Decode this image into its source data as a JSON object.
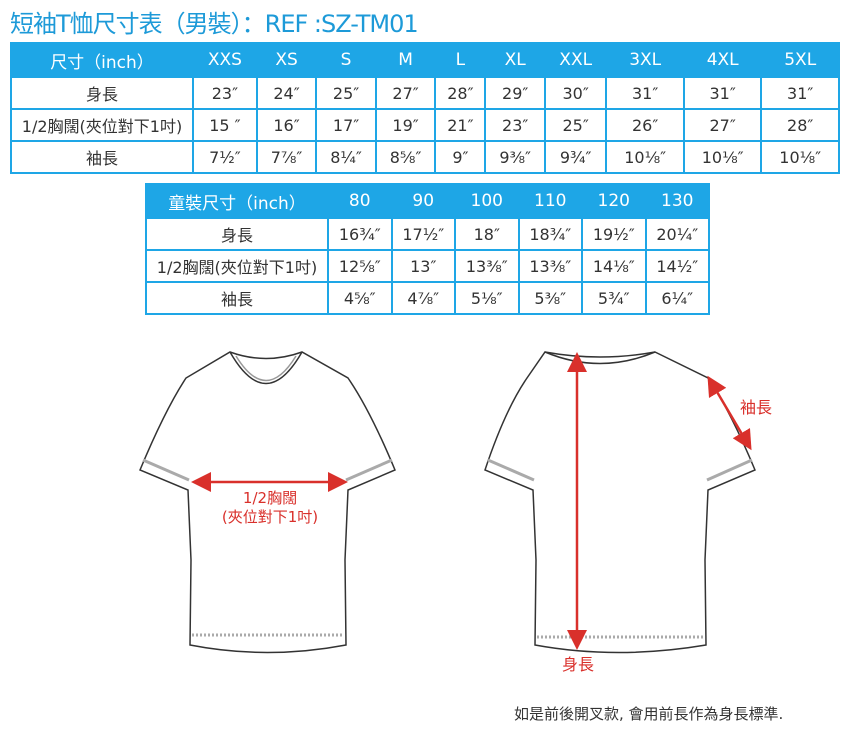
{
  "title": "短袖T恤尺寸表（男裝）：REF :SZ-TM01",
  "adult_table": {
    "header": [
      "尺寸（inch）",
      "XXS",
      "XS",
      "S",
      "M",
      "L",
      "XL",
      "XXL",
      "3XL",
      "4XL",
      "5XL"
    ],
    "rows": [
      {
        "label": "身長",
        "values": [
          "23″",
          "24″",
          "25″",
          "27″",
          "28″",
          "29″",
          "30″",
          "31″",
          "31″",
          "31″"
        ]
      },
      {
        "label": "1/2胸闊(夾位對下1吋)",
        "values": [
          "15 ″",
          "16″",
          "17″",
          "19″",
          "21″",
          "23″",
          "25″",
          "26″",
          "27″",
          "28″"
        ]
      },
      {
        "label": "袖長",
        "values": [
          "7½″",
          "7⅞″",
          "8¼″",
          "8⅝″",
          "9″",
          "9⅜″",
          "9¾″",
          "10⅛″",
          "10⅛″",
          "10⅛″"
        ]
      }
    ]
  },
  "kids_table": {
    "header": [
      "童裝尺寸（inch）",
      "80",
      "90",
      "100",
      "110",
      "120",
      "130"
    ],
    "rows": [
      {
        "label": "身長",
        "values": [
          "16¾″",
          "17½″",
          "18″",
          "18¾″",
          "19½″",
          "20¼″"
        ]
      },
      {
        "label": "1/2胸闊(夾位對下1吋)",
        "values": [
          "12⅝″",
          "13″",
          "13⅜″",
          "13⅜″",
          "14⅛″",
          "14½″"
        ]
      },
      {
        "label": "袖長",
        "values": [
          "4⅝″",
          "4⅞″",
          "5⅛″",
          "5⅜″",
          "5¾″",
          "6¼″"
        ]
      }
    ]
  },
  "diagram": {
    "chest_label_1": "1/2胸闊",
    "chest_label_2": "(夾位對下1吋)",
    "sleeve_label": "袖長",
    "length_label": "身長"
  },
  "note": "如是前後開叉款, 會用前長作為身長標準.",
  "colors": {
    "accent": "#1ea6e6",
    "title": "#1d9ad8",
    "measure": "#d9302b"
  }
}
